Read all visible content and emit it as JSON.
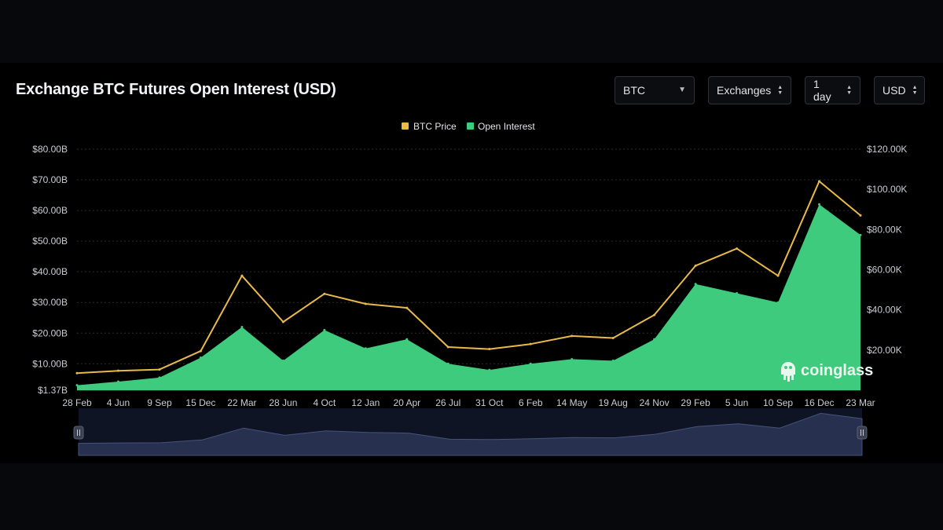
{
  "title": "Exchange BTC Futures Open Interest (USD)",
  "controls": {
    "coin": "BTC",
    "exchanges": "Exchanges",
    "interval": "1 day",
    "currency": "USD"
  },
  "watermark": "coinglass",
  "colors": {
    "price": "#e9b949",
    "open_interest": "#3ecb7e",
    "navigator": "#27314f",
    "grid": "#2a2d33"
  },
  "chart_data": {
    "type": "area",
    "legend": [
      "BTC Price",
      "Open Interest"
    ],
    "legend_position": "top-center",
    "x_tick_labels": [
      "28 Feb",
      "4 Jun",
      "9 Sep",
      "15 Dec",
      "22 Mar",
      "28 Jun",
      "4 Oct",
      "12 Jan",
      "20 Apr",
      "26 Jul",
      "31 Oct",
      "6 Feb",
      "14 May",
      "19 Aug",
      "24 Nov",
      "29 Feb",
      "5 Jun",
      "10 Sep",
      "16 Dec",
      "23 Mar"
    ],
    "y_left_tick_labels": [
      "$80.00B",
      "$70.00B",
      "$60.00B",
      "$50.00B",
      "$40.00B",
      "$30.00B",
      "$20.00B",
      "$10.00B",
      "$1.37B"
    ],
    "y_right_tick_labels": [
      "$120.00K",
      "$100.00K",
      "$80.00K",
      "$60.00K",
      "$40.00K",
      "$20.00K"
    ],
    "y_left_range": [
      1.37,
      80
    ],
    "y_right_range": [
      0,
      120000
    ],
    "grid": true,
    "series": [
      {
        "name": "Open Interest",
        "axis": "left",
        "unit": "billion USD",
        "points": [
          [
            "28 Feb",
            3.0
          ],
          [
            "4 Jun",
            4.2
          ],
          [
            "9 Sep",
            5.5
          ],
          [
            "15 Dec",
            12
          ],
          [
            "22 Mar",
            22
          ],
          [
            "28 Jun",
            11
          ],
          [
            "4 Oct",
            21
          ],
          [
            "12 Jan",
            15
          ],
          [
            "20 Apr",
            18
          ],
          [
            "26 Jul",
            10
          ],
          [
            "31 Oct",
            8
          ],
          [
            "6 Feb",
            10
          ],
          [
            "14 May",
            11.5
          ],
          [
            "19 Aug",
            11
          ],
          [
            "24 Nov",
            18
          ],
          [
            "29 Feb",
            36
          ],
          [
            "5 Jun",
            33
          ],
          [
            "10 Sep",
            30
          ],
          [
            "16 Dec",
            62
          ],
          [
            "23 Mar",
            52
          ]
        ]
      },
      {
        "name": "BTC Price",
        "axis": "right",
        "unit": "USD",
        "points": [
          [
            "28 Feb",
            8500
          ],
          [
            "4 Jun",
            9700
          ],
          [
            "9 Sep",
            10300
          ],
          [
            "15 Dec",
            19500
          ],
          [
            "22 Mar",
            57000
          ],
          [
            "28 Jun",
            34000
          ],
          [
            "4 Oct",
            48000
          ],
          [
            "12 Jan",
            43000
          ],
          [
            "20 Apr",
            41000
          ],
          [
            "26 Jul",
            21500
          ],
          [
            "31 Oct",
            20500
          ],
          [
            "6 Feb",
            23000
          ],
          [
            "14 May",
            27000
          ],
          [
            "19 Aug",
            26000
          ],
          [
            "24 Nov",
            37500
          ],
          [
            "29 Feb",
            62000
          ],
          [
            "5 Jun",
            70500
          ],
          [
            "10 Sep",
            57000
          ],
          [
            "16 Dec",
            104000
          ],
          [
            "23 Mar",
            87000
          ]
        ]
      }
    ]
  }
}
